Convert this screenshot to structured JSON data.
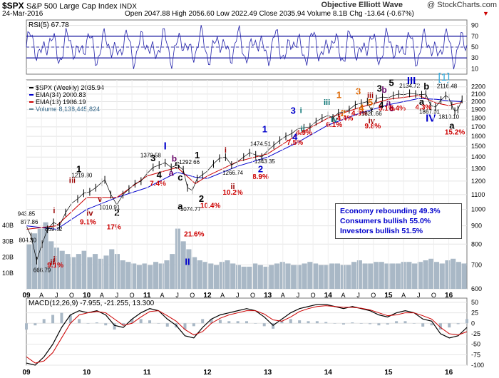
{
  "header": {
    "symbol": "$SPX",
    "name": "S&P 500 Large Cap Index",
    "exchange": "INDX",
    "date": "24-Mar-2016",
    "ohlc": "Open 2047.88  High 2056.60  Low 2022.49  Close 2035.94  Volume 8.1B  Chg -13.64 (-0.67%)",
    "source": "Objective Elliott Wave",
    "watermark": "@ StockCharts.com"
  },
  "rsi_panel": {
    "label": "RSI(5) 67.78",
    "ticks": [
      "90",
      "70",
      "50",
      "30",
      "10"
    ]
  },
  "price_panel": {
    "legend": [
      "$SPX (Weekly) 2035.94",
      "EMA(34) 2000.83",
      "EMA(13) 1986.19",
      "Volume 8,138,445,824"
    ],
    "price_ticks": [
      "2200",
      "2100",
      "2000",
      "1900",
      "1800",
      "1700",
      "1600",
      "1500",
      "1400",
      "1300",
      "1200",
      "1100",
      "1000",
      "900",
      "800",
      "700",
      "600"
    ],
    "volume_ticks": [
      "40B",
      "30B",
      "20B",
      "10B"
    ]
  },
  "macd_panel": {
    "label": "MACD(12,26,9) -7.955, -21.255, 13.300",
    "ticks": [
      "50",
      "25",
      "0",
      "-25",
      "-50",
      "-75",
      "-100"
    ]
  },
  "x_axis": [
    "09",
    "A",
    "J",
    "O",
    "10",
    "A",
    "J",
    "O",
    "11",
    "A",
    "J",
    "O",
    "12",
    "A",
    "J",
    "O",
    "13",
    "A",
    "J",
    "O",
    "14",
    "A",
    "J",
    "O",
    "15",
    "A",
    "J",
    "O",
    "16"
  ],
  "info_box": [
    "Economy rebounding 49.3%",
    "Consumers bullish 55.0%",
    "Investors bullish 51.5%"
  ],
  "annotations": [
    {
      "t": "1",
      "c": "#000000",
      "s": 13,
      "b": true,
      "x": 2009.87,
      "y": 1270
    },
    {
      "t": "1219.80",
      "c": "#000000",
      "s": 8,
      "b": false,
      "x": 2009.92,
      "y": 1230
    },
    {
      "t": "iii",
      "c": "#990000",
      "s": 11,
      "b": true,
      "x": 2009.76,
      "y": 1185
    },
    {
      "t": "i",
      "c": "#990000",
      "s": 11,
      "b": true,
      "x": 2009.46,
      "y": 975
    },
    {
      "t": "943.85",
      "c": "#000000",
      "s": 8,
      "b": false,
      "x": 2009.0,
      "y": 960
    },
    {
      "t": "877.86",
      "c": "#000000",
      "s": 8,
      "b": false,
      "x": 2009.05,
      "y": 910
    },
    {
      "t": "ii",
      "c": "#990000",
      "s": 11,
      "b": true,
      "x": 2009.43,
      "y": 700
    },
    {
      "t": "869.32",
      "c": "#000000",
      "s": 8,
      "b": false,
      "x": 2009.45,
      "y": 870
    },
    {
      "t": "804.30",
      "c": "#000000",
      "s": 8,
      "b": false,
      "x": 2009.02,
      "y": 810
    },
    {
      "t": "ii",
      "c": "#990000",
      "s": 11,
      "b": true,
      "x": 2009.48,
      "y": 715
    },
    {
      "t": "9.1%",
      "c": "#cc0000",
      "s": 10,
      "b": true,
      "x": 2009.48,
      "y": 688
    },
    {
      "t": "666.79",
      "c": "#000000",
      "s": 8,
      "b": false,
      "x": 2009.26,
      "y": 668
    },
    {
      "t": "iv",
      "c": "#990000",
      "s": 11,
      "b": true,
      "x": 2010.05,
      "y": 960
    },
    {
      "t": "9.1%",
      "c": "#cc0000",
      "s": 10,
      "b": true,
      "x": 2010.02,
      "y": 908
    },
    {
      "t": "v",
      "c": "#990000",
      "s": 11,
      "b": true,
      "x": 2010.22,
      "y": 1050
    },
    {
      "t": "1010.91",
      "c": "#000000",
      "s": 8,
      "b": false,
      "x": 2010.38,
      "y": 1000
    },
    {
      "t": "2",
      "c": "#000000",
      "s": 13,
      "b": true,
      "x": 2010.5,
      "y": 960
    },
    {
      "t": "17%",
      "c": "#cc0000",
      "s": 10,
      "b": true,
      "x": 2010.45,
      "y": 880
    },
    {
      "t": "3",
      "c": "#000000",
      "s": 13,
      "b": true,
      "x": 2011.1,
      "y": 1365
    },
    {
      "t": "1370.58",
      "c": "#000000",
      "s": 8,
      "b": false,
      "x": 2011.06,
      "y": 1398
    },
    {
      "t": "I",
      "c": "#0000cc",
      "s": 15,
      "b": true,
      "x": 2011.3,
      "y": 1470
    },
    {
      "t": "4",
      "c": "#000000",
      "s": 13,
      "b": true,
      "x": 2011.2,
      "y": 1225
    },
    {
      "t": "7.4%",
      "c": "#cc0000",
      "s": 10,
      "b": true,
      "x": 2011.18,
      "y": 1165
    },
    {
      "t": "b",
      "c": "#660066",
      "s": 12,
      "b": true,
      "x": 2011.45,
      "y": 1360
    },
    {
      "t": "5",
      "c": "#000000",
      "s": 13,
      "b": true,
      "x": 2011.5,
      "y": 1300
    },
    {
      "t": "1292.66",
      "c": "#000000",
      "s": 8,
      "b": false,
      "x": 2011.7,
      "y": 1340
    },
    {
      "t": "a",
      "c": "#660066",
      "s": 12,
      "b": true,
      "x": 2011.4,
      "y": 1240
    },
    {
      "t": "c",
      "c": "#000000",
      "s": 13,
      "b": true,
      "x": 2011.55,
      "y": 1205
    },
    {
      "t": "1",
      "c": "#000000",
      "s": 13,
      "b": true,
      "x": 2011.83,
      "y": 1390
    },
    {
      "t": "a",
      "c": "#000000",
      "s": 13,
      "b": true,
      "x": 2011.55,
      "y": 1000
    },
    {
      "t": "1074.77",
      "c": "#000000",
      "s": 8,
      "b": false,
      "x": 2011.72,
      "y": 990
    },
    {
      "t": "2",
      "c": "#000000",
      "s": 13,
      "b": true,
      "x": 2011.9,
      "y": 1050
    },
    {
      "t": "II",
      "c": "#0000cc",
      "s": 13,
      "b": true,
      "x": 2011.67,
      "y": 700
    },
    {
      "t": "21.6%",
      "c": "#cc0000",
      "s": 10,
      "b": true,
      "x": 2011.78,
      "y": 840
    },
    {
      "t": "10.4%",
      "c": "#cc0000",
      "s": 10,
      "b": true,
      "x": 2012.05,
      "y": 1010
    },
    {
      "t": "i",
      "c": "#990000",
      "s": 11,
      "b": true,
      "x": 2012.3,
      "y": 1440
    },
    {
      "t": "1266.74",
      "c": "#000000",
      "s": 8,
      "b": false,
      "x": 2012.42,
      "y": 1250
    },
    {
      "t": "ii",
      "c": "#990000",
      "s": 11,
      "b": true,
      "x": 2012.42,
      "y": 1140
    },
    {
      "t": "10.2%",
      "c": "#cc0000",
      "s": 10,
      "b": true,
      "x": 2012.42,
      "y": 1100
    },
    {
      "t": "1",
      "c": "#0000cc",
      "s": 13,
      "b": true,
      "x": 2012.95,
      "y": 1640
    },
    {
      "t": "1474.51",
      "c": "#000000",
      "s": 8,
      "b": false,
      "x": 2012.88,
      "y": 1505
    },
    {
      "t": "1343.35",
      "c": "#000000",
      "s": 8,
      "b": false,
      "x": 2012.95,
      "y": 1345
    },
    {
      "t": "2",
      "c": "#0000cc",
      "s": 13,
      "b": true,
      "x": 2012.88,
      "y": 1270
    },
    {
      "t": "8.9%",
      "c": "#cc0000",
      "s": 10,
      "b": true,
      "x": 2012.88,
      "y": 1215
    },
    {
      "t": "3",
      "c": "#0000cc",
      "s": 13,
      "b": true,
      "x": 2013.42,
      "y": 1850
    },
    {
      "t": "i",
      "c": "#007070",
      "s": 11,
      "b": true,
      "x": 2013.55,
      "y": 1860
    },
    {
      "t": "ii",
      "c": "#007070",
      "s": 11,
      "b": true,
      "x": 2013.58,
      "y": 1650
    },
    {
      "t": "4.9%",
      "c": "#cc0000",
      "s": 10,
      "b": true,
      "x": 2013.6,
      "y": 1615
    },
    {
      "t": "4",
      "c": "#0000cc",
      "s": 13,
      "b": true,
      "x": 2013.45,
      "y": 1560
    },
    {
      "t": "7.5%",
      "c": "#cc0000",
      "s": 10,
      "b": true,
      "x": 2013.45,
      "y": 1515
    },
    {
      "t": "iii",
      "c": "#007070",
      "s": 11,
      "b": true,
      "x": 2013.98,
      "y": 1960
    },
    {
      "t": "iv",
      "c": "#007070",
      "s": 11,
      "b": true,
      "x": 2014.1,
      "y": 1755
    },
    {
      "t": "6.1%",
      "c": "#cc0000",
      "s": 10,
      "b": true,
      "x": 2014.1,
      "y": 1700
    },
    {
      "t": "1",
      "c": "#dd6600",
      "s": 13,
      "b": true,
      "x": 2014.18,
      "y": 2045
    },
    {
      "t": "2",
      "c": "#dd6600",
      "s": 13,
      "b": true,
      "x": 2014.25,
      "y": 1820
    },
    {
      "t": "4.4%",
      "c": "#cc0000",
      "s": 10,
      "b": true,
      "x": 2014.28,
      "y": 1770
    },
    {
      "t": "3",
      "c": "#dd6600",
      "s": 13,
      "b": true,
      "x": 2014.5,
      "y": 2095
    },
    {
      "t": "4",
      "c": "#dd6600",
      "s": 13,
      "b": true,
      "x": 2014.55,
      "y": 1885
    },
    {
      "t": "4.3%",
      "c": "#cc0000",
      "s": 10,
      "b": true,
      "x": 2014.52,
      "y": 1828
    },
    {
      "t": "iii",
      "c": "#990000",
      "s": 11,
      "b": true,
      "x": 2014.7,
      "y": 2045
    },
    {
      "t": "5",
      "c": "#dd6600",
      "s": 13,
      "b": true,
      "x": 2014.7,
      "y": 1950
    },
    {
      "t": "1820.66",
      "c": "#000000",
      "s": 8,
      "b": false,
      "x": 2014.72,
      "y": 1830
    },
    {
      "t": "iv",
      "c": "#990000",
      "s": 11,
      "b": true,
      "x": 2014.72,
      "y": 1740
    },
    {
      "t": "9.8%",
      "c": "#cc0000",
      "s": 10,
      "b": true,
      "x": 2014.74,
      "y": 1685
    },
    {
      "t": "3",
      "c": "#000000",
      "s": 13,
      "b": true,
      "x": 2014.85,
      "y": 2130
    },
    {
      "t": "b",
      "c": "#660066",
      "s": 12,
      "b": true,
      "x": 2014.93,
      "y": 2120
    },
    {
      "t": "4",
      "c": "#000000",
      "s": 13,
      "b": true,
      "x": 2014.88,
      "y": 1920
    },
    {
      "t": "a",
      "c": "#660066",
      "s": 12,
      "b": true,
      "x": 2015.0,
      "y": 1950
    },
    {
      "t": "5.1%",
      "c": "#cc0000",
      "s": 10,
      "b": true,
      "x": 2014.97,
      "y": 1890
    },
    {
      "t": "c",
      "c": "#660066",
      "s": 12,
      "b": true,
      "x": 2015.05,
      "y": 1880
    },
    {
      "t": "III",
      "c": "#0000cc",
      "s": 15,
      "b": true,
      "x": 2015.38,
      "y": 2240
    },
    {
      "t": "2134.72",
      "c": "#000000",
      "s": 8,
      "b": false,
      "x": 2015.35,
      "y": 2185
    },
    {
      "t": "5",
      "c": "#000000",
      "s": 13,
      "b": true,
      "x": 2015.05,
      "y": 2210
    },
    {
      "t": "5.4%",
      "c": "#cc0000",
      "s": 10,
      "b": true,
      "x": 2015.15,
      "y": 1890
    },
    {
      "t": "b",
      "c": "#000000",
      "s": 13,
      "b": true,
      "x": 2015.63,
      "y": 2160
    },
    {
      "t": "[1]",
      "c": "#33aadd",
      "s": 15,
      "b": false,
      "x": 2015.92,
      "y": 2290
    },
    {
      "t": "2116.48",
      "c": "#000000",
      "s": 8,
      "b": false,
      "x": 2015.97,
      "y": 2180
    },
    {
      "t": "a",
      "c": "#000000",
      "s": 13,
      "b": true,
      "x": 2015.55,
      "y": 1960
    },
    {
      "t": "4.3%",
      "c": "#cc0000",
      "s": 10,
      "b": true,
      "x": 2015.58,
      "y": 1900
    },
    {
      "t": "1867.01",
      "c": "#000000",
      "s": 8,
      "b": false,
      "x": 2015.68,
      "y": 1850
    },
    {
      "t": "IV",
      "c": "#0000cc",
      "s": 15,
      "b": true,
      "x": 2015.7,
      "y": 1760
    },
    {
      "t": "1810.10",
      "c": "#000000",
      "s": 8,
      "b": false,
      "x": 2016.0,
      "y": 1790
    },
    {
      "t": "a",
      "c": "#000000",
      "s": 13,
      "b": true,
      "x": 2016.05,
      "y": 1680
    },
    {
      "t": "15.2%",
      "c": "#cc0000",
      "s": 10,
      "b": true,
      "x": 2016.1,
      "y": 1620
    }
  ],
  "chart_data": {
    "type": "line",
    "title": "$SPX S&P 500 Large Cap Index (Weekly)",
    "ylim": [
      600,
      2300
    ],
    "y_scale": "log",
    "xlim": [
      2009.0,
      2016.3
    ],
    "series": [
      {
        "name": "$SPX (Weekly)",
        "color": "#000000",
        "style": "ohlc",
        "x": [
          2009.0,
          2009.08,
          2009.17,
          2009.26,
          2009.35,
          2009.45,
          2009.55,
          2009.65,
          2009.75,
          2009.85,
          2009.95,
          2010.05,
          2010.15,
          2010.25,
          2010.3,
          2010.4,
          2010.5,
          2010.6,
          2010.7,
          2010.8,
          2010.9,
          2011.0,
          2011.1,
          2011.2,
          2011.3,
          2011.4,
          2011.5,
          2011.6,
          2011.67,
          2011.75,
          2011.83,
          2011.92,
          2012.0,
          2012.1,
          2012.2,
          2012.3,
          2012.4,
          2012.5,
          2012.6,
          2012.7,
          2012.8,
          2012.9,
          2013.0,
          2013.1,
          2013.2,
          2013.3,
          2013.4,
          2013.5,
          2013.6,
          2013.7,
          2013.8,
          2013.9,
          2014.0,
          2014.08,
          2014.17,
          2014.25,
          2014.35,
          2014.45,
          2014.55,
          2014.65,
          2014.72,
          2014.8,
          2014.9,
          2015.0,
          2015.08,
          2015.17,
          2015.25,
          2015.35,
          2015.45,
          2015.55,
          2015.62,
          2015.7,
          2015.78,
          2015.87,
          2015.95,
          2016.0,
          2016.05,
          2016.1,
          2016.15,
          2016.22
        ],
        "y": [
          900,
          840,
          720,
          800,
          880,
          920,
          900,
          980,
          1040,
          1070,
          1110,
          1120,
          1150,
          1190,
          1210,
          1100,
          1030,
          1100,
          1140,
          1180,
          1200,
          1260,
          1310,
          1330,
          1350,
          1310,
          1330,
          1290,
          1150,
          1130,
          1220,
          1250,
          1280,
          1340,
          1390,
          1400,
          1330,
          1360,
          1400,
          1440,
          1420,
          1400,
          1460,
          1510,
          1560,
          1600,
          1630,
          1680,
          1690,
          1700,
          1760,
          1800,
          1830,
          1800,
          1860,
          1870,
          1900,
          1960,
          1980,
          2000,
          1880,
          2040,
          2060,
          2050,
          2080,
          2100,
          2090,
          2110,
          2100,
          2090,
          2100,
          1950,
          1930,
          2020,
          2080,
          2050,
          1950,
          1880,
          1900,
          2030
        ]
      },
      {
        "name": "EMA(34)",
        "color": "#0000cc",
        "style": "line",
        "x": [
          2009.0,
          2009.5,
          2010.0,
          2010.5,
          2011.0,
          2011.5,
          2011.8,
          2012.0,
          2012.5,
          2013.0,
          2013.5,
          2014.0,
          2014.5,
          2015.0,
          2015.5,
          2015.8,
          2016.0,
          2016.22
        ],
        "y": [
          900,
          880,
          1000,
          1080,
          1150,
          1270,
          1230,
          1220,
          1320,
          1400,
          1540,
          1720,
          1850,
          1960,
          2040,
          2030,
          2010,
          2000
        ]
      },
      {
        "name": "EMA(13)",
        "color": "#cc0000",
        "style": "line",
        "x": [
          2009.0,
          2009.5,
          2010.0,
          2010.5,
          2011.0,
          2011.5,
          2011.8,
          2012.0,
          2012.5,
          2013.0,
          2013.5,
          2014.0,
          2014.5,
          2015.0,
          2015.5,
          2015.8,
          2016.0,
          2016.22
        ],
        "y": [
          880,
          900,
          1080,
          1080,
          1240,
          1310,
          1180,
          1240,
          1360,
          1430,
          1620,
          1800,
          1920,
          2030,
          2080,
          1980,
          1950,
          1990
        ]
      }
    ],
    "volume": {
      "unit": "B",
      "ylim": [
        0,
        45
      ],
      "values": [
        28,
        35,
        38,
        42,
        30,
        26,
        24,
        22,
        20,
        22,
        24,
        20,
        22,
        19,
        21,
        25,
        22,
        18,
        17,
        16,
        15,
        16,
        15,
        17,
        16,
        18,
        22,
        38,
        30,
        25,
        20,
        18,
        17,
        16,
        15,
        17,
        18,
        16,
        15,
        14,
        14,
        16,
        15,
        14,
        15,
        16,
        17,
        16,
        15,
        15,
        16,
        17,
        16,
        15,
        15,
        16,
        16,
        15,
        15,
        17,
        18,
        16,
        16,
        17,
        17,
        16,
        16,
        16,
        17,
        17,
        16,
        17,
        18,
        19,
        17,
        16,
        18,
        19,
        17,
        16
      ]
    },
    "rsi": {
      "name": "RSI(5) 67.78",
      "ylim": [
        0,
        100
      ],
      "overbought": 70,
      "oversold": 30
    },
    "macd": {
      "name": "MACD(12,26,9) -7.955, -21.255, 13.300",
      "ylim": [
        -100,
        60
      ],
      "macd": [
        -95,
        -100,
        -80,
        -50,
        -10,
        20,
        30,
        25,
        30,
        20,
        -5,
        -10,
        10,
        25,
        35,
        30,
        10,
        -5,
        -30,
        -35,
        -10,
        10,
        20,
        25,
        30,
        35,
        30,
        15,
        -5,
        10,
        25,
        35,
        40,
        45,
        45,
        40,
        35,
        40,
        35,
        30,
        20,
        15,
        25,
        30,
        25,
        10,
        5,
        -25,
        -35,
        -30,
        -10
      ],
      "signal": [
        -80,
        -95,
        -90,
        -70,
        -35,
        0,
        20,
        25,
        28,
        25,
        10,
        -5,
        0,
        15,
        28,
        30,
        18,
        5,
        -15,
        -28,
        -20,
        0,
        12,
        20,
        25,
        30,
        30,
        22,
        8,
        5,
        15,
        28,
        35,
        40,
        42,
        40,
        38,
        38,
        36,
        32,
        25,
        18,
        20,
        25,
        25,
        18,
        10,
        -10,
        -25,
        -28,
        -20
      ]
    }
  }
}
